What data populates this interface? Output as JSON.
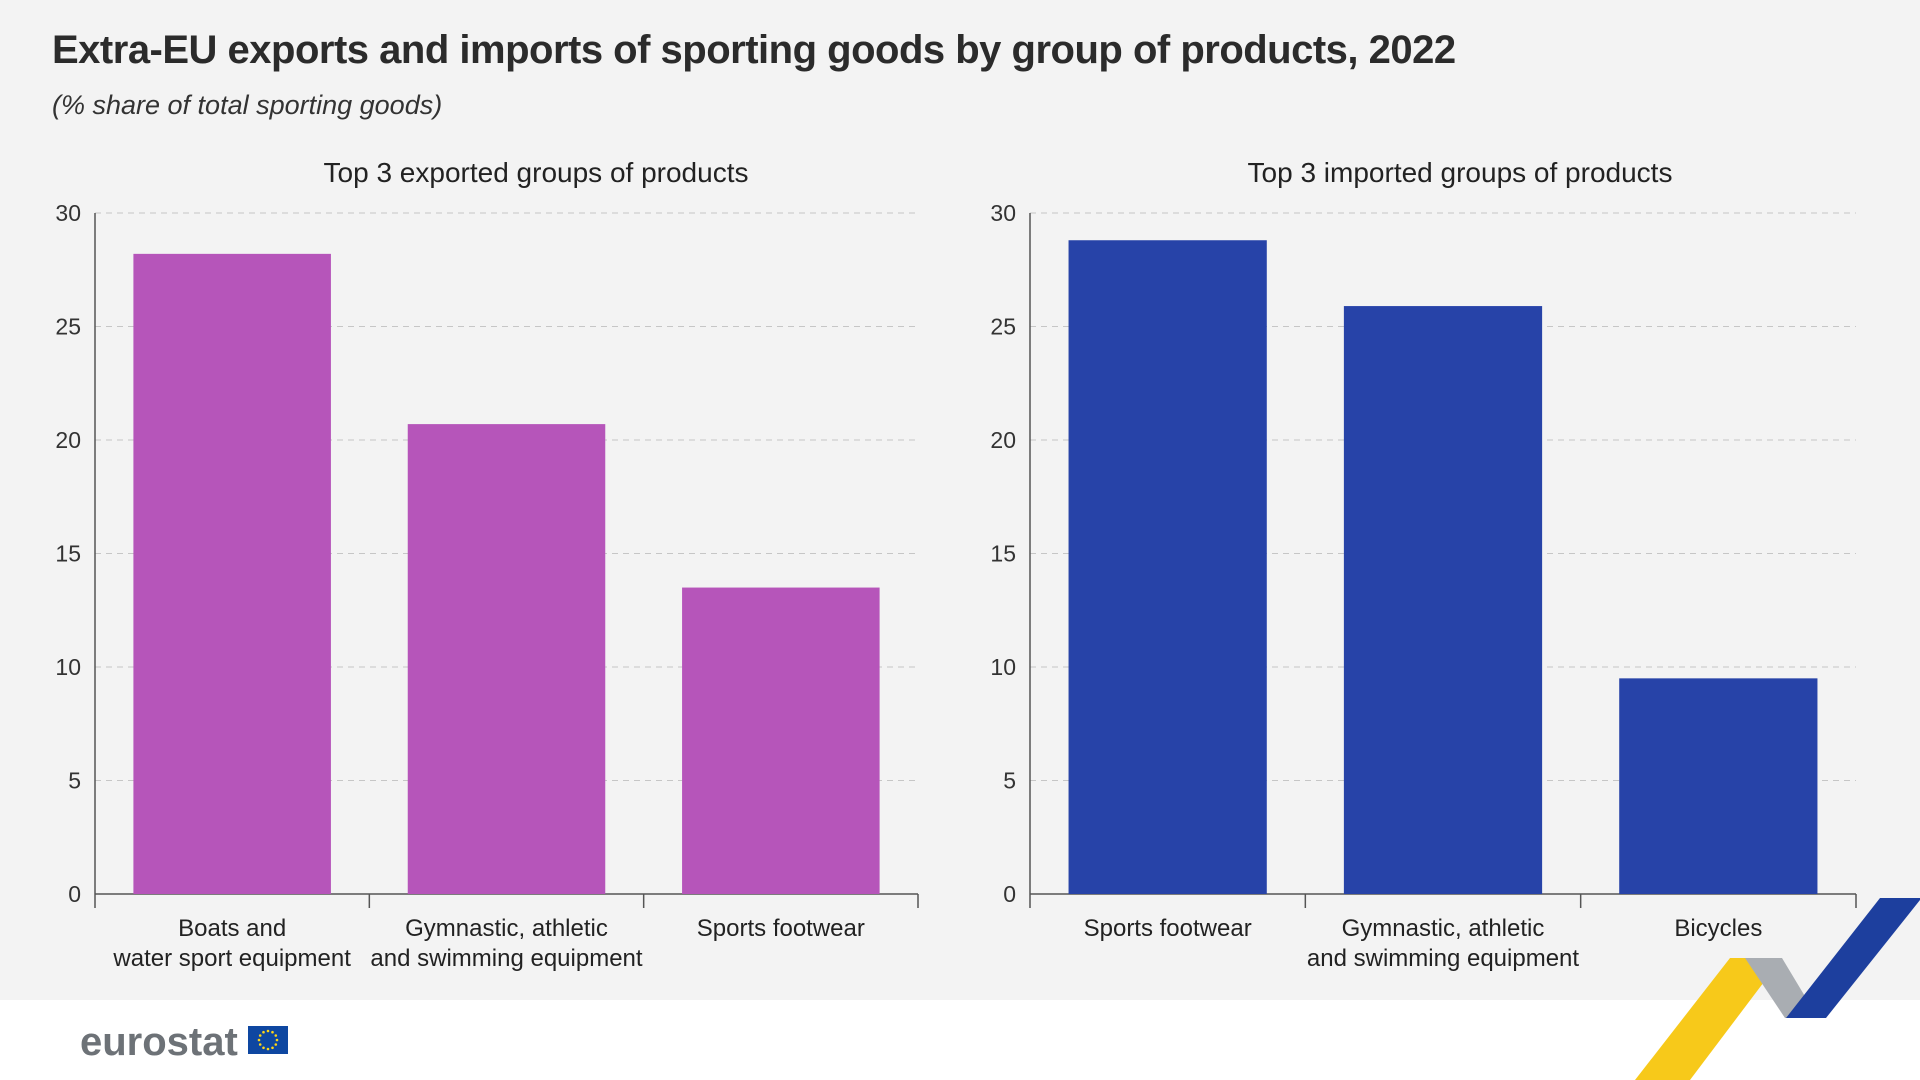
{
  "header": {
    "title": "Extra-EU exports and imports of sporting goods by group of products, 2022",
    "subtitle": "(% share of total sporting goods)"
  },
  "logo": {
    "text": "eurostat"
  },
  "colors": {
    "exports": "#b655ba",
    "imports": "#2743a8",
    "background": "#f3f3f3",
    "footer": "#ffffff"
  },
  "chart_data": [
    {
      "type": "bar",
      "title": "Top 3 exported groups of products",
      "categories": [
        [
          "Boats and",
          "water sport equipment"
        ],
        [
          "Gymnastic, athletic",
          "and swimming equipment"
        ],
        [
          "Sports footwear"
        ]
      ],
      "values": [
        28.2,
        20.7,
        13.5
      ],
      "ylim": [
        0,
        30
      ],
      "yticks": [
        0,
        5,
        10,
        15,
        20,
        25,
        30
      ],
      "xlabel": "",
      "ylabel": "",
      "grid": true
    },
    {
      "type": "bar",
      "title": "Top 3 imported groups of products",
      "categories": [
        [
          "Sports footwear"
        ],
        [
          "Gymnastic, athletic",
          "and swimming equipment"
        ],
        [
          "Bicycles"
        ]
      ],
      "values": [
        28.8,
        25.9,
        9.5
      ],
      "ylim": [
        0,
        30
      ],
      "yticks": [
        0,
        5,
        10,
        15,
        20,
        25,
        30
      ],
      "xlabel": "",
      "ylabel": "",
      "grid": true
    }
  ]
}
